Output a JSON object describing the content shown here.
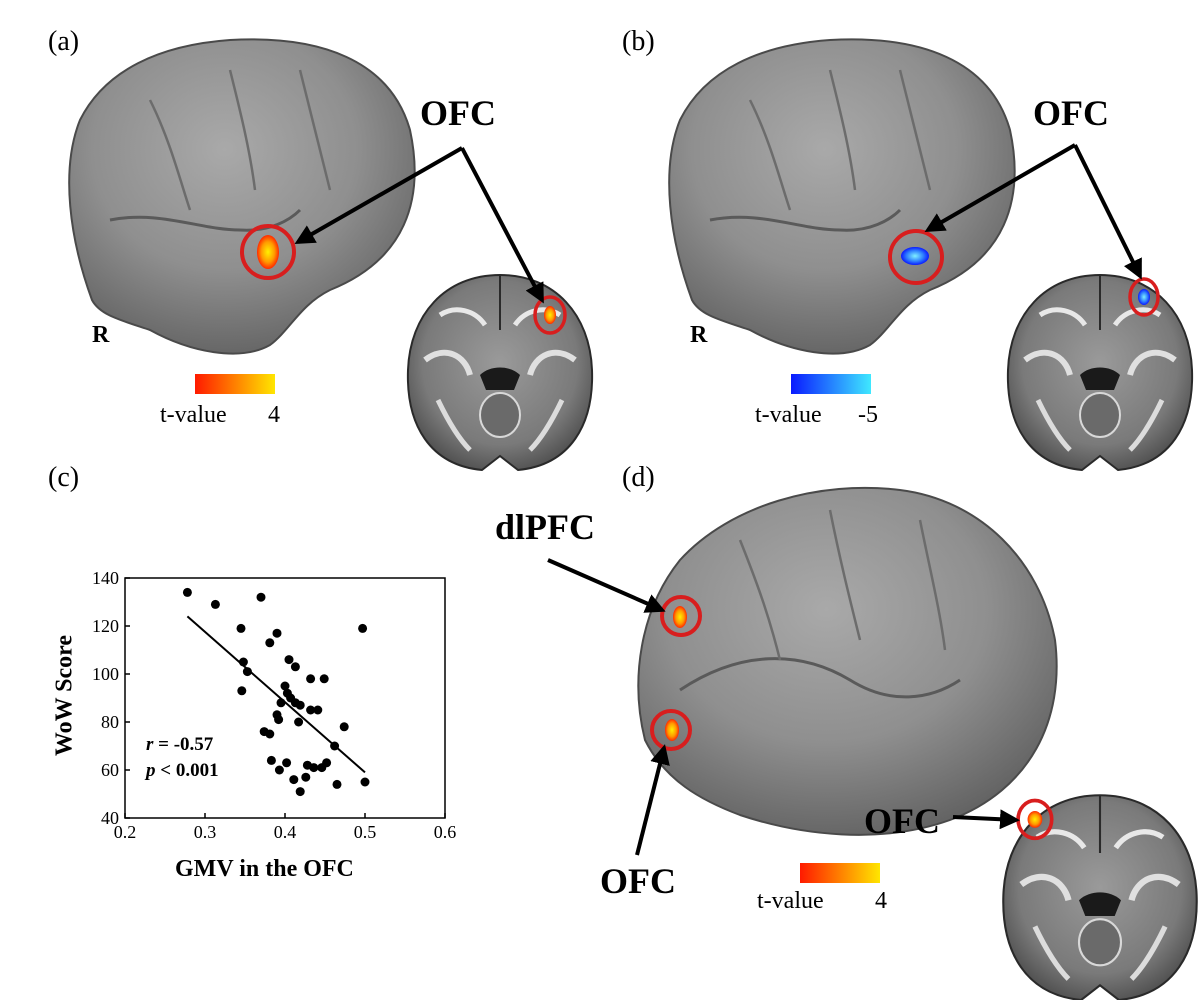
{
  "panels": {
    "a": {
      "label": "(a)",
      "region": "OFC",
      "hemisphere": "R",
      "colorbar_title": "t-value",
      "colorbar_max": "4",
      "colorbar_colors": [
        "#ff1a00",
        "#ffe600"
      ]
    },
    "b": {
      "label": "(b)",
      "region": "OFC",
      "hemisphere": "R",
      "colorbar_title": "t-value",
      "colorbar_max": "-5",
      "colorbar_colors": [
        "#0a1aff",
        "#3fe8ff"
      ]
    },
    "c": {
      "label": "(c)"
    },
    "d": {
      "label": "(d)",
      "region_top": "dlPFC",
      "region_bottom": "OFC",
      "region_axial": "OFC",
      "colorbar_title": "t-value",
      "colorbar_max": "4",
      "colorbar_colors": [
        "#ff1a00",
        "#ffe600"
      ]
    }
  },
  "highlight_color": "#d81e1e",
  "chart_data": {
    "type": "scatter",
    "xlabel": "GMV in the OFC",
    "ylabel": "WoW Score",
    "xlim": [
      0.2,
      0.6
    ],
    "ylim": [
      40,
      140
    ],
    "xticks": [
      "0.2",
      "0.3",
      "0.4",
      "0.5",
      "0.6"
    ],
    "yticks": [
      "40",
      "60",
      "80",
      "100",
      "120",
      "140"
    ],
    "stats": {
      "r_symbol": "r",
      "r_value": " = -0.57",
      "p_symbol": "p",
      "p_value": " < 0.001"
    },
    "fit_line": {
      "x": [
        0.278,
        0.5
      ],
      "y": [
        124,
        59
      ]
    },
    "points": [
      {
        "x": 0.278,
        "y": 134
      },
      {
        "x": 0.313,
        "y": 129
      },
      {
        "x": 0.37,
        "y": 132
      },
      {
        "x": 0.345,
        "y": 119
      },
      {
        "x": 0.39,
        "y": 117
      },
      {
        "x": 0.381,
        "y": 113
      },
      {
        "x": 0.497,
        "y": 119
      },
      {
        "x": 0.348,
        "y": 105
      },
      {
        "x": 0.353,
        "y": 101
      },
      {
        "x": 0.346,
        "y": 93
      },
      {
        "x": 0.405,
        "y": 106
      },
      {
        "x": 0.413,
        "y": 103
      },
      {
        "x": 0.4,
        "y": 95
      },
      {
        "x": 0.403,
        "y": 92
      },
      {
        "x": 0.407,
        "y": 90
      },
      {
        "x": 0.395,
        "y": 88
      },
      {
        "x": 0.413,
        "y": 88
      },
      {
        "x": 0.432,
        "y": 98
      },
      {
        "x": 0.449,
        "y": 98
      },
      {
        "x": 0.419,
        "y": 87
      },
      {
        "x": 0.432,
        "y": 85
      },
      {
        "x": 0.441,
        "y": 85
      },
      {
        "x": 0.392,
        "y": 81
      },
      {
        "x": 0.39,
        "y": 83
      },
      {
        "x": 0.417,
        "y": 80
      },
      {
        "x": 0.374,
        "y": 76
      },
      {
        "x": 0.381,
        "y": 75
      },
      {
        "x": 0.474,
        "y": 78
      },
      {
        "x": 0.462,
        "y": 70
      },
      {
        "x": 0.402,
        "y": 63
      },
      {
        "x": 0.383,
        "y": 64
      },
      {
        "x": 0.393,
        "y": 60
      },
      {
        "x": 0.428,
        "y": 62
      },
      {
        "x": 0.436,
        "y": 61
      },
      {
        "x": 0.446,
        "y": 61
      },
      {
        "x": 0.452,
        "y": 63
      },
      {
        "x": 0.411,
        "y": 56
      },
      {
        "x": 0.426,
        "y": 57
      },
      {
        "x": 0.419,
        "y": 51
      },
      {
        "x": 0.465,
        "y": 54
      },
      {
        "x": 0.5,
        "y": 55
      }
    ]
  }
}
